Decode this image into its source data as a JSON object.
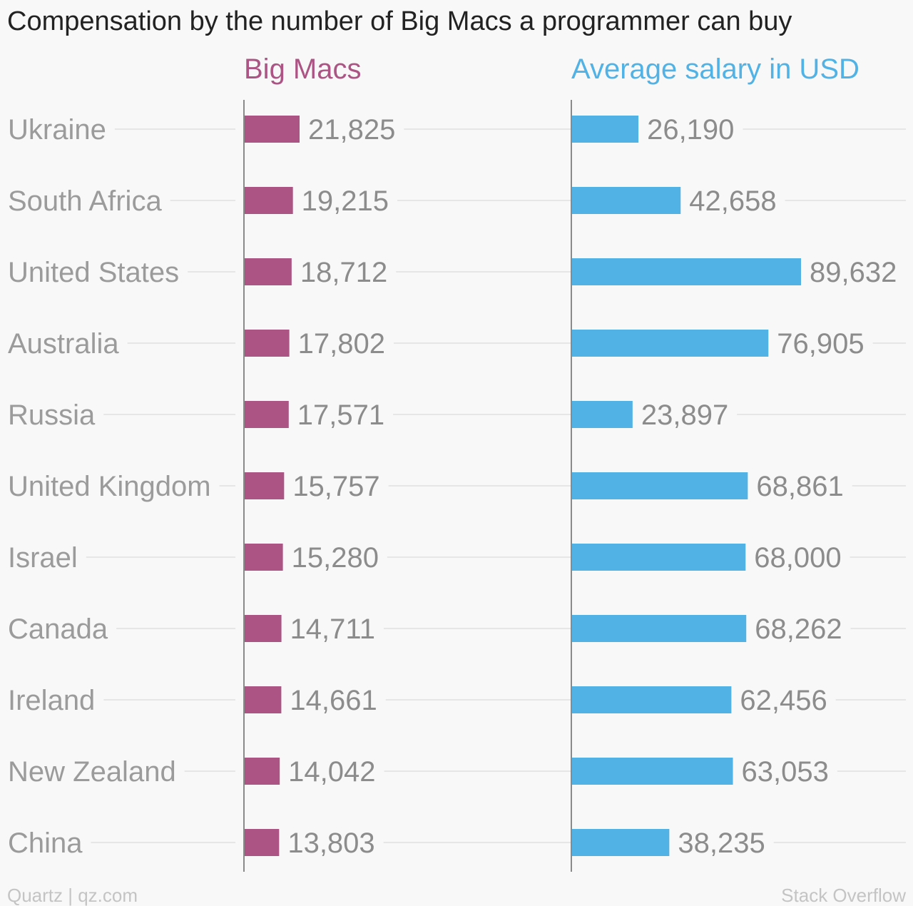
{
  "chart_data": {
    "type": "bar",
    "orientation": "horizontal",
    "title": "Compensation by the number of Big Macs a programmer can buy",
    "categories": [
      "Ukraine",
      "South Africa",
      "United States",
      "Australia",
      "Russia",
      "United Kingdom",
      "Israel",
      "Canada",
      "Ireland",
      "New Zealand",
      "China"
    ],
    "series": [
      {
        "name": "Big Macs",
        "color": "#ac5585",
        "values": [
          21825,
          19215,
          18712,
          17802,
          17571,
          15757,
          15280,
          14711,
          14661,
          14042,
          13803
        ],
        "labels": [
          "21,825",
          "19,215",
          "18,712",
          "17,802",
          "17,571",
          "15,757",
          "15,280",
          "14,711",
          "14,661",
          "14,042",
          "13,803"
        ]
      },
      {
        "name": "Average salary in USD",
        "color": "#51b2e5",
        "values": [
          26190,
          42658,
          89632,
          76905,
          23897,
          68861,
          68000,
          68262,
          62456,
          63053,
          38235
        ],
        "labels": [
          "26,190",
          "42,658",
          "89,632",
          "76,905",
          "23,897",
          "68,861",
          "68,000",
          "68,262",
          "62,456",
          "63,053",
          "38,235"
        ]
      }
    ],
    "grid": true,
    "legend": "top"
  },
  "footer": {
    "left": "Quartz | qz.com",
    "right": "Stack Overflow"
  }
}
